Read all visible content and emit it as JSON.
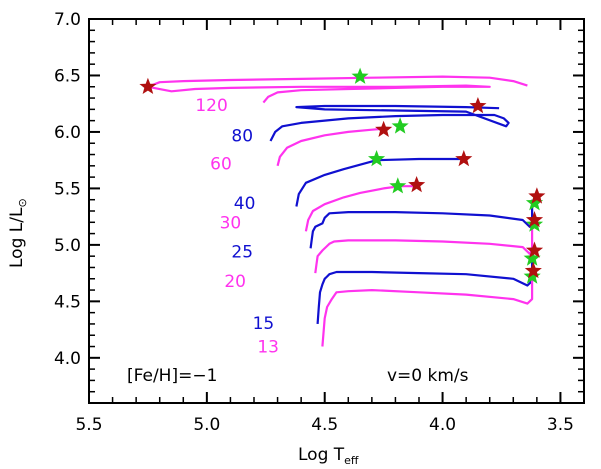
{
  "chart_data": {
    "type": "line",
    "title": "",
    "xlabel": "Log T",
    "xlabel_sub": "eff",
    "ylabel": "Log L/L",
    "ylabel_sub": "⊙",
    "xlim": [
      5.5,
      3.4
    ],
    "ylim": [
      3.6,
      7.0
    ],
    "x_ticks": [
      5.5,
      5.0,
      4.5,
      4.0,
      3.5
    ],
    "x_tick_labels": [
      "5.5",
      "5.0",
      "4.5",
      "4.0",
      "3.5"
    ],
    "y_ticks": [
      4.0,
      4.5,
      5.0,
      5.5,
      6.0,
      6.5,
      7.0
    ],
    "y_tick_labels": [
      "4.0",
      "4.5",
      "5.0",
      "5.5",
      "6.0",
      "6.5",
      "7.0"
    ],
    "grid": false,
    "annotations": [
      "[Fe/H]=−1",
      "v=0 km/s"
    ],
    "colors": {
      "magenta": "#ff33ee",
      "blue": "#1010d0",
      "red_star": "#b01010",
      "green_star": "#22cc22",
      "axis": "#000000"
    },
    "series": [
      {
        "label": "120",
        "color": "#ff33ee",
        "label_pos": [
          4.98,
          6.24
        ],
        "x": [
          4.76,
          4.74,
          4.7,
          4.6,
          4.4,
          4.2,
          4.0,
          3.9,
          3.8,
          3.9,
          4.2,
          4.6,
          4.9,
          5.05,
          5.15,
          5.25,
          5.2,
          5.1,
          4.9,
          4.6,
          4.3,
          4.0,
          3.8,
          3.7,
          3.64
        ],
        "y": [
          6.26,
          6.31,
          6.35,
          6.37,
          6.38,
          6.39,
          6.4,
          6.4,
          6.4,
          6.41,
          6.4,
          6.4,
          6.39,
          6.38,
          6.36,
          6.4,
          6.44,
          6.45,
          6.46,
          6.47,
          6.48,
          6.49,
          6.48,
          6.45,
          6.41
        ]
      },
      {
        "label": "80",
        "color": "#1010d0",
        "label_pos": [
          4.85,
          5.97
        ],
        "x": [
          4.73,
          4.71,
          4.68,
          4.6,
          4.5,
          4.4,
          4.2,
          4.0,
          3.85,
          3.78,
          3.74,
          3.72,
          3.73,
          3.9,
          4.2,
          4.5,
          4.62,
          4.5,
          4.2,
          3.9,
          3.76
        ],
        "y": [
          5.92,
          6.0,
          6.05,
          6.08,
          6.1,
          6.12,
          6.14,
          6.15,
          6.15,
          6.15,
          6.12,
          6.08,
          6.05,
          6.18,
          6.19,
          6.2,
          6.22,
          6.23,
          6.23,
          6.22,
          6.21
        ]
      },
      {
        "label": "60",
        "color": "#ff33ee",
        "label_pos": [
          4.94,
          5.72
        ],
        "x": [
          4.7,
          4.69,
          4.66,
          4.6,
          4.5,
          4.4,
          4.3,
          4.24
        ],
        "y": [
          5.7,
          5.78,
          5.86,
          5.92,
          5.97,
          6.0,
          6.02,
          6.03
        ]
      },
      {
        "label": "40",
        "color": "#1010d0",
        "label_pos": [
          4.84,
          5.37
        ],
        "x": [
          4.62,
          4.61,
          4.58,
          4.5,
          4.42,
          4.35,
          4.28,
          4.1,
          3.9
        ],
        "y": [
          5.34,
          5.45,
          5.55,
          5.62,
          5.67,
          5.71,
          5.75,
          5.76,
          5.76
        ]
      },
      {
        "label": "30",
        "color": "#ff33ee",
        "label_pos": [
          4.9,
          5.2
        ],
        "x": [
          4.58,
          4.57,
          4.55,
          4.5,
          4.42,
          4.35,
          4.25,
          4.18,
          4.1
        ],
        "y": [
          5.12,
          5.22,
          5.3,
          5.36,
          5.42,
          5.46,
          5.5,
          5.52,
          5.52
        ]
      },
      {
        "label": "25",
        "color": "#1010d0",
        "label_pos": [
          4.85,
          4.94
        ],
        "x": [
          4.56,
          4.555,
          4.55,
          4.54,
          4.51,
          4.5,
          4.48,
          4.4,
          4.2,
          4.0,
          3.8,
          3.66,
          3.63,
          3.62,
          3.62
        ],
        "y": [
          4.97,
          5.05,
          5.12,
          5.16,
          5.19,
          5.24,
          5.28,
          5.29,
          5.29,
          5.28,
          5.26,
          5.22,
          5.16,
          5.2,
          5.4
        ]
      },
      {
        "label": "20",
        "color": "#ff33ee",
        "label_pos": [
          4.88,
          4.68
        ],
        "x": [
          4.54,
          4.535,
          4.53,
          4.51,
          4.49,
          4.48,
          4.46,
          4.4,
          4.2,
          4.0,
          3.8,
          3.66,
          3.63,
          3.62,
          3.62
        ],
        "y": [
          4.75,
          4.83,
          4.9,
          4.95,
          4.99,
          5.01,
          5.03,
          5.04,
          5.04,
          5.03,
          5.01,
          4.98,
          4.92,
          4.96,
          5.2
        ]
      },
      {
        "label": "15",
        "color": "#1010d0",
        "label_pos": [
          4.76,
          4.31
        ],
        "x": [
          4.53,
          4.525,
          4.52,
          4.51,
          4.5,
          4.49,
          4.48,
          4.45,
          4.3,
          4.1,
          3.9,
          3.7,
          3.64,
          3.62,
          3.62
        ],
        "y": [
          4.3,
          4.45,
          4.58,
          4.65,
          4.7,
          4.72,
          4.74,
          4.76,
          4.76,
          4.75,
          4.74,
          4.7,
          4.64,
          4.68,
          4.95
        ]
      },
      {
        "label": "13",
        "color": "#ff33ee",
        "label_pos": [
          4.74,
          4.1
        ],
        "x": [
          4.51,
          4.505,
          4.5,
          4.49,
          4.47,
          4.46,
          4.45,
          4.4,
          4.3,
          4.1,
          3.9,
          3.7,
          3.64,
          3.62,
          3.62
        ],
        "y": [
          4.1,
          4.22,
          4.35,
          4.45,
          4.52,
          4.55,
          4.58,
          4.59,
          4.6,
          4.58,
          4.56,
          4.52,
          4.48,
          4.52,
          4.78
        ]
      }
    ],
    "red_stars": [
      {
        "x": 5.25,
        "y": 6.4
      },
      {
        "x": 3.85,
        "y": 6.23
      },
      {
        "x": 4.25,
        "y": 6.02
      },
      {
        "x": 3.91,
        "y": 5.76
      },
      {
        "x": 4.11,
        "y": 5.53
      },
      {
        "x": 3.6,
        "y": 5.43
      },
      {
        "x": 3.61,
        "y": 5.22
      },
      {
        "x": 3.61,
        "y": 4.95
      },
      {
        "x": 3.615,
        "y": 4.77
      }
    ],
    "green_stars": [
      {
        "x": 4.35,
        "y": 6.49
      },
      {
        "x": 4.18,
        "y": 6.05
      },
      {
        "x": 4.28,
        "y": 5.76
      },
      {
        "x": 4.19,
        "y": 5.52
      },
      {
        "x": 3.61,
        "y": 5.37
      },
      {
        "x": 3.61,
        "y": 5.18
      },
      {
        "x": 3.62,
        "y": 4.88
      },
      {
        "x": 3.62,
        "y": 4.72
      }
    ]
  }
}
